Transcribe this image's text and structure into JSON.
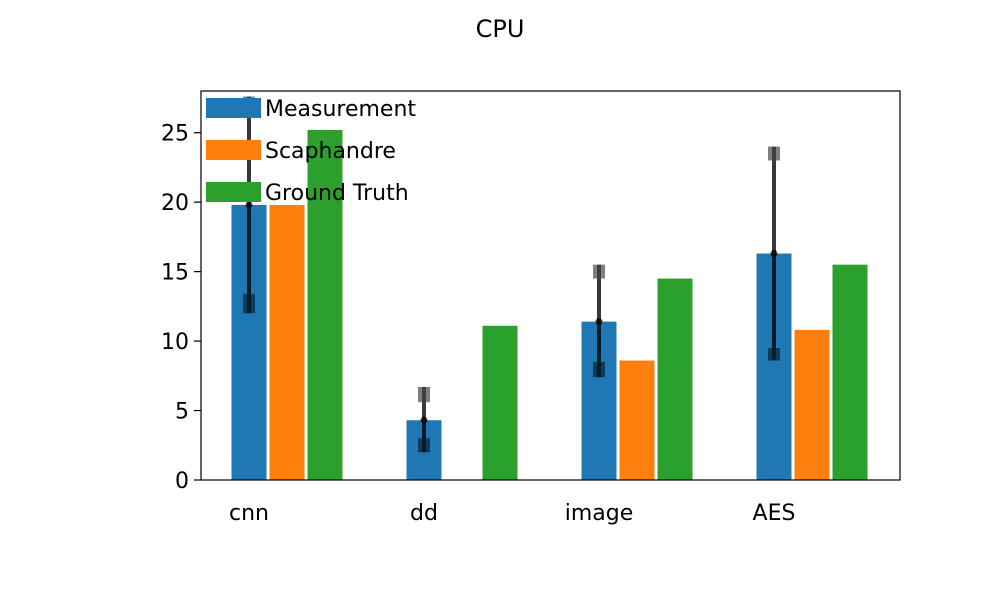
{
  "chart_data": {
    "type": "bar",
    "title": "CPU",
    "xlabel": "",
    "ylabel": "",
    "ylim": [
      0,
      28
    ],
    "yticks": [
      0,
      5,
      10,
      15,
      20,
      25
    ],
    "grid": false,
    "legend_position": "top-left",
    "categories": [
      "cnn",
      "dd",
      "image",
      "AES"
    ],
    "series": [
      {
        "name": "Measurement",
        "color": "#1f77b4",
        "values": [
          19.8,
          4.3,
          11.4,
          16.3
        ]
      },
      {
        "name": "Scaphandre",
        "color": "#ff7f0e",
        "values": [
          19.8,
          null,
          8.6,
          10.8
        ]
      },
      {
        "name": "Ground Truth",
        "color": "#2ca02c",
        "values": [
          25.2,
          11.1,
          14.5,
          15.5
        ]
      }
    ],
    "error_ranges": [
      {
        "category": "cnn",
        "center": 19.8,
        "inner": [
          13.4,
          26.3
        ],
        "outer": [
          12.0,
          27.6
        ]
      },
      {
        "category": "dd",
        "center": 4.3,
        "inner": [
          3.0,
          5.6
        ],
        "outer": [
          2.0,
          6.7
        ]
      },
      {
        "category": "image",
        "center": 11.4,
        "inner": [
          8.5,
          14.5
        ],
        "outer": [
          7.4,
          15.5
        ]
      },
      {
        "category": "AES",
        "center": 16.3,
        "inner": [
          9.5,
          23.0
        ],
        "outer": [
          8.6,
          24.0
        ]
      }
    ]
  }
}
